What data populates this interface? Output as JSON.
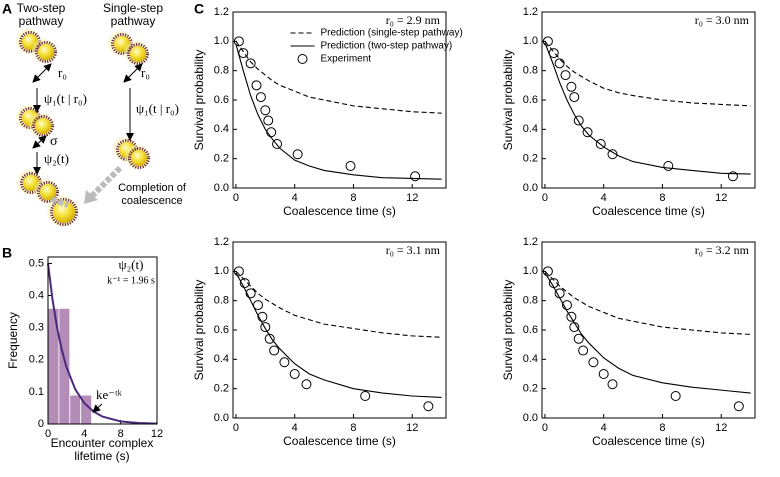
{
  "figure": {
    "panel_labels": [
      "A",
      "B",
      "C"
    ]
  },
  "diagram": {
    "two_step": "Two-step pathway",
    "single_step": "Single-step pathway",
    "r0_left": "r₀",
    "r0_right": "r₀",
    "psi1_left": "ψ₁(t | r₀)",
    "psi1_right": "ψ₁(t | r₀)",
    "sigma": "σ",
    "psi2": "ψ₂(t)",
    "completion": "Completion of coalescence"
  },
  "chart_data": [
    {
      "type": "histogram",
      "xlabel": "Encounter complex lifetime (s)",
      "ylabel": "Frequency",
      "bins": [
        0,
        1.2,
        2.4,
        3.6,
        4.8
      ],
      "values": [
        0.36,
        0.36,
        0.09,
        0.09
      ],
      "color": "#b48cb8",
      "curve": {
        "x": [
          0,
          0.5,
          1,
          1.5,
          2,
          3,
          4,
          5,
          6,
          8,
          10,
          12
        ],
        "values": [
          0.5,
          0.387,
          0.3,
          0.233,
          0.18,
          0.108,
          0.065,
          0.039,
          0.023,
          0.008,
          0.003,
          0.001
        ],
        "color": "#4b2a7b"
      },
      "annotations": {
        "curve_title": "ψ₂(t)",
        "rate": "k⁻¹ = 1.96 s",
        "curve_label": "ke⁻ᵗᵏ"
      },
      "xlim": [
        0,
        12
      ],
      "ylim": [
        0,
        0.52
      ],
      "xticks": [
        0,
        4,
        8,
        12
      ],
      "yticks": [
        0,
        0.1,
        0.2,
        0.3,
        0.4,
        0.5
      ]
    },
    {
      "type": "line",
      "annotation": "r₀ = 2.9 nm",
      "xlabel": "Coalescence time (s)",
      "ylabel": "Survival probability",
      "legend": "upper center",
      "xlim": [
        -0.2,
        14.3
      ],
      "ylim": [
        0,
        1.2
      ],
      "xticks": [
        0,
        4,
        8,
        12
      ],
      "yticks": [
        {
          "value": 0,
          "label": "0.0"
        },
        0.2,
        0.4,
        0.6,
        0.8,
        {
          "value": 1,
          "label": "1.0"
        },
        1.2
      ],
      "series": [
        {
          "name": "Prediction (single-step pathway)",
          "style": "dashed",
          "color": "#000000",
          "x": [
            0,
            0.5,
            1,
            1.5,
            2,
            2.5,
            3,
            4,
            5,
            6,
            8,
            10,
            12,
            14
          ],
          "values": [
            1.0,
            0.93,
            0.86,
            0.81,
            0.77,
            0.73,
            0.7,
            0.66,
            0.62,
            0.6,
            0.56,
            0.54,
            0.52,
            0.51
          ]
        },
        {
          "name": "Prediction (two-step pathway)",
          "style": "solid",
          "color": "#000000",
          "x": [
            0,
            0.5,
            1,
            1.5,
            2,
            2.5,
            3,
            4,
            5,
            6,
            8,
            10,
            12,
            14
          ],
          "values": [
            0.98,
            0.8,
            0.63,
            0.5,
            0.4,
            0.33,
            0.27,
            0.19,
            0.15,
            0.12,
            0.09,
            0.07,
            0.065,
            0.06
          ]
        },
        {
          "name": "Experiment",
          "style": "markers",
          "color": "#000000",
          "x": [
            0.2,
            0.5,
            1.0,
            1.4,
            1.7,
            2.0,
            2.2,
            2.4,
            2.8,
            4.2,
            7.8,
            12.2
          ],
          "values": [
            1.0,
            0.92,
            0.85,
            0.7,
            0.62,
            0.53,
            0.46,
            0.38,
            0.3,
            0.23,
            0.15,
            0.08
          ]
        }
      ]
    },
    {
      "type": "line",
      "annotation": "r₀ = 3.0 nm",
      "xlabel": "Coalescence time (s)",
      "ylabel": "Survival probability",
      "xlim": [
        -0.2,
        14.3
      ],
      "ylim": [
        0,
        1.2
      ],
      "xticks": [
        0,
        4,
        8,
        12
      ],
      "yticks": [
        {
          "value": 0,
          "label": "0.0"
        },
        0.2,
        0.4,
        0.6,
        0.8,
        {
          "value": 1,
          "label": "1.0"
        },
        1.2
      ],
      "series": [
        {
          "style": "dashed",
          "color": "#000000",
          "x": [
            0,
            0.5,
            1,
            1.5,
            2,
            2.5,
            3,
            4,
            5,
            6,
            8,
            10,
            12,
            14
          ],
          "values": [
            1.0,
            0.94,
            0.88,
            0.83,
            0.79,
            0.76,
            0.73,
            0.68,
            0.65,
            0.63,
            0.6,
            0.58,
            0.57,
            0.56
          ]
        },
        {
          "style": "solid",
          "color": "#000000",
          "x": [
            0,
            0.5,
            1,
            1.5,
            2,
            2.5,
            3,
            4,
            5,
            6,
            8,
            10,
            12,
            14
          ],
          "values": [
            0.99,
            0.86,
            0.72,
            0.6,
            0.5,
            0.42,
            0.36,
            0.28,
            0.22,
            0.18,
            0.14,
            0.12,
            0.1,
            0.095
          ]
        },
        {
          "style": "markers",
          "color": "#000000",
          "x": [
            0.2,
            0.6,
            1.0,
            1.4,
            1.8,
            2.0,
            2.3,
            2.9,
            3.8,
            4.6,
            8.4,
            12.8
          ],
          "values": [
            1.0,
            0.92,
            0.85,
            0.77,
            0.69,
            0.62,
            0.46,
            0.38,
            0.3,
            0.23,
            0.15,
            0.08
          ]
        }
      ]
    },
    {
      "type": "line",
      "annotation": "r₀ = 3.1 nm",
      "xlabel": "Coalescence time (s)",
      "ylabel": "Survival probability",
      "xlim": [
        -0.2,
        14.3
      ],
      "ylim": [
        0,
        1.2
      ],
      "xticks": [
        0,
        4,
        8,
        12
      ],
      "yticks": [
        {
          "value": 0,
          "label": "0.0"
        },
        0.2,
        0.4,
        0.6,
        0.8,
        {
          "value": 1,
          "label": "1.0"
        },
        1.2
      ],
      "series": [
        {
          "style": "dashed",
          "color": "#000000",
          "x": [
            0,
            0.5,
            1,
            1.5,
            2,
            2.5,
            3,
            4,
            5,
            6,
            8,
            10,
            12,
            14
          ],
          "values": [
            1.0,
            0.95,
            0.9,
            0.85,
            0.81,
            0.78,
            0.75,
            0.7,
            0.67,
            0.64,
            0.61,
            0.58,
            0.56,
            0.55
          ]
        },
        {
          "style": "solid",
          "color": "#000000",
          "x": [
            0,
            0.5,
            1,
            1.5,
            2,
            2.5,
            3,
            4,
            5,
            6,
            8,
            10,
            12,
            14
          ],
          "values": [
            0.99,
            0.9,
            0.8,
            0.7,
            0.61,
            0.53,
            0.47,
            0.37,
            0.3,
            0.26,
            0.2,
            0.17,
            0.15,
            0.14
          ]
        },
        {
          "style": "markers",
          "color": "#000000",
          "x": [
            0.2,
            0.6,
            1.0,
            1.5,
            1.8,
            2.0,
            2.3,
            2.6,
            3.3,
            4.0,
            4.8,
            8.8,
            13.1
          ],
          "values": [
            1.0,
            0.92,
            0.85,
            0.77,
            0.69,
            0.62,
            0.54,
            0.46,
            0.38,
            0.3,
            0.23,
            0.15,
            0.08
          ]
        }
      ]
    },
    {
      "type": "line",
      "annotation": "r₀ = 3.2 nm",
      "xlabel": "Coalescence time (s)",
      "ylabel": "Survival probability",
      "xlim": [
        -0.2,
        14.3
      ],
      "ylim": [
        0,
        1.2
      ],
      "xticks": [
        0,
        4,
        8,
        12
      ],
      "yticks": [
        {
          "value": 0,
          "label": "0.0"
        },
        0.2,
        0.4,
        0.6,
        0.8,
        {
          "value": 1,
          "label": "1.0"
        },
        1.2
      ],
      "series": [
        {
          "style": "dashed",
          "color": "#000000",
          "x": [
            0,
            0.5,
            1,
            1.5,
            2,
            2.5,
            3,
            4,
            5,
            6,
            8,
            10,
            12,
            14
          ],
          "values": [
            1.0,
            0.95,
            0.9,
            0.86,
            0.82,
            0.79,
            0.76,
            0.72,
            0.68,
            0.66,
            0.62,
            0.6,
            0.58,
            0.57
          ]
        },
        {
          "style": "solid",
          "color": "#000000",
          "x": [
            0,
            0.5,
            1,
            1.5,
            2,
            2.5,
            3,
            4,
            5,
            6,
            8,
            10,
            12,
            14
          ],
          "values": [
            0.99,
            0.91,
            0.82,
            0.73,
            0.65,
            0.57,
            0.51,
            0.41,
            0.34,
            0.29,
            0.24,
            0.21,
            0.19,
            0.17
          ]
        },
        {
          "style": "markers",
          "color": "#000000",
          "x": [
            0.2,
            0.6,
            1.0,
            1.5,
            1.8,
            2.0,
            2.3,
            2.6,
            3.3,
            4.0,
            4.6,
            8.9,
            13.2
          ],
          "values": [
            1.0,
            0.92,
            0.85,
            0.77,
            0.69,
            0.62,
            0.54,
            0.46,
            0.38,
            0.3,
            0.23,
            0.15,
            0.08
          ]
        }
      ]
    }
  ]
}
